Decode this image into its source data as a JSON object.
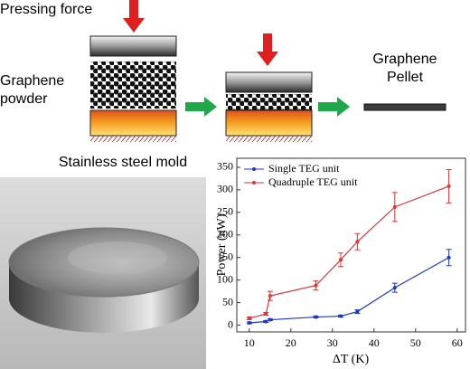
{
  "diagram": {
    "pressing_force": "Pressing force",
    "powder_label": [
      "Graphene",
      "powder"
    ],
    "pellet_label": [
      "Graphene",
      "Pellet"
    ],
    "mold_label": "Stainless steel mold"
  },
  "chart_data": {
    "type": "line",
    "x_label": "ΔT (K)",
    "y_label": "Power (nW)",
    "xlim": [
      7,
      62
    ],
    "xticks": [
      10,
      20,
      30,
      40,
      50,
      60
    ],
    "ylim": [
      -15,
      370
    ],
    "yticks": [
      0,
      50,
      100,
      150,
      200,
      250,
      300,
      350
    ],
    "legend": "upper left",
    "series": [
      {
        "name": "Single TEG unit",
        "color": "#2036c8",
        "x": [
          10,
          14,
          15,
          26,
          32,
          36,
          45,
          58
        ],
        "values": [
          5,
          8,
          12,
          18,
          20,
          30,
          83,
          150
        ],
        "errors": [
          2,
          2,
          2,
          2,
          2,
          4,
          10,
          18
        ]
      },
      {
        "name": "Quadruple TEG unit",
        "color": "#e03535",
        "x": [
          10,
          14,
          15,
          26,
          32,
          36,
          45,
          58
        ],
        "values": [
          15,
          25,
          65,
          88,
          145,
          185,
          262,
          308
        ],
        "errors": [
          3,
          3,
          10,
          10,
          15,
          18,
          32,
          37
        ]
      }
    ]
  }
}
